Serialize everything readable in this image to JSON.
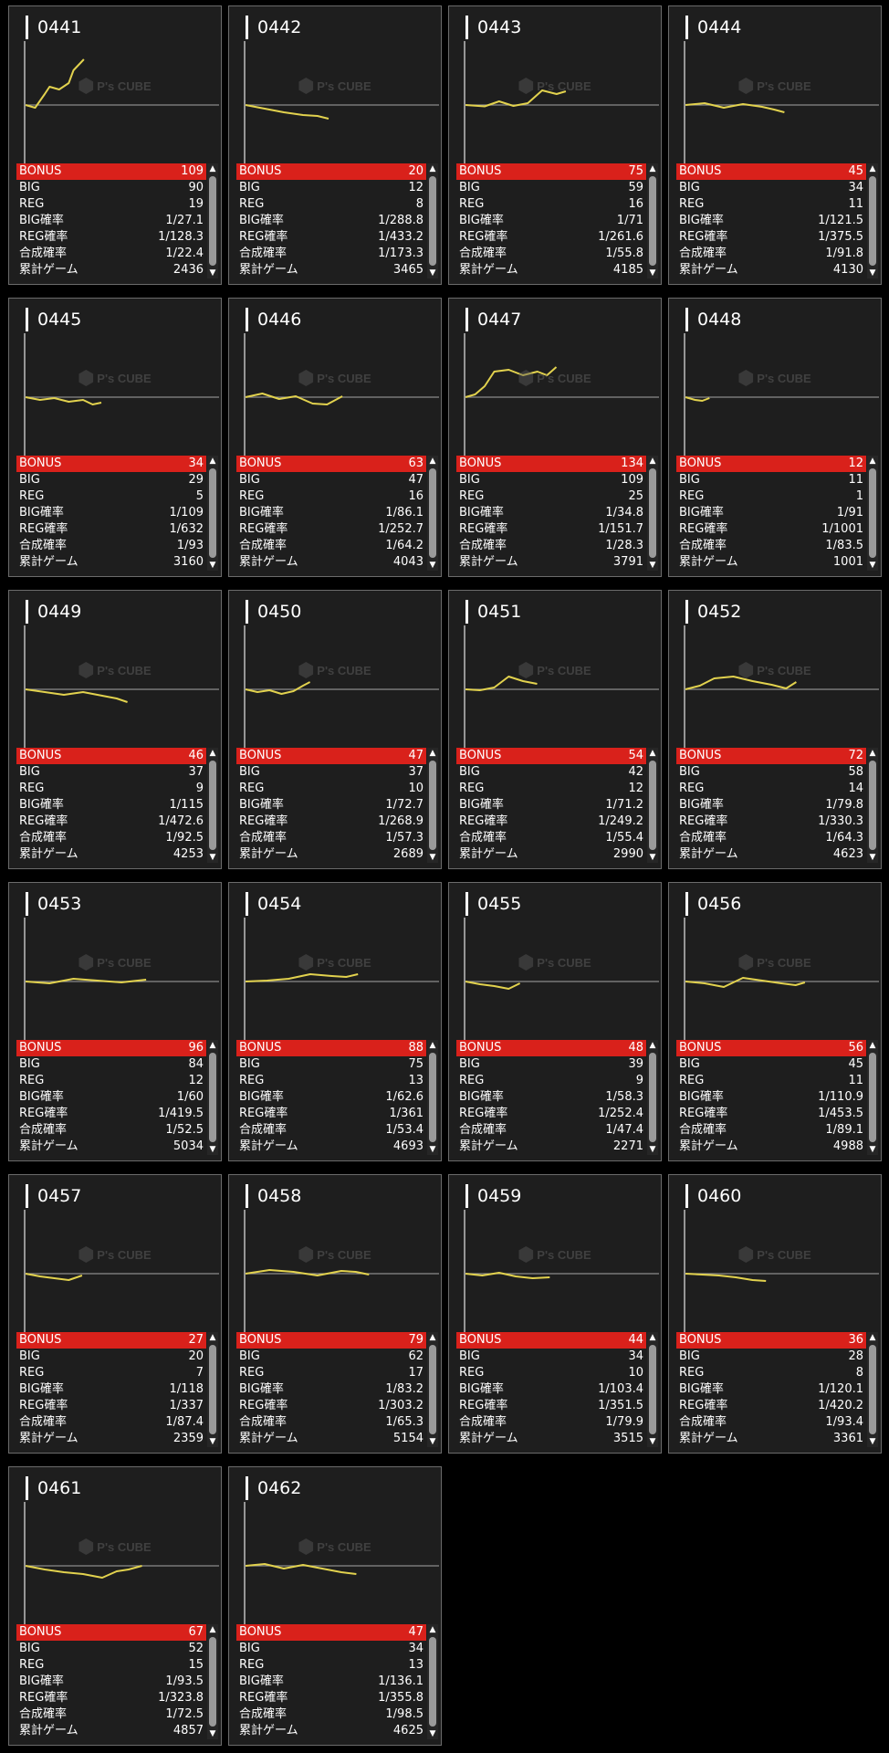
{
  "colors": {
    "accent": "#d9211b",
    "line": "#e2d24e",
    "background": "#000000",
    "card": "#1e1e1e"
  },
  "watermark": "P's CUBE",
  "labels": {
    "bonus": "BONUS",
    "big": "BIG",
    "reg": "REG",
    "big_rate": "BIG確率",
    "reg_rate": "REG確率",
    "combined_rate": "合成確率",
    "total_games": "累計ゲーム"
  },
  "machines": [
    {
      "number": "0441",
      "bonus": "109",
      "big": "90",
      "reg": "19",
      "big_rate": "1/27.1",
      "reg_rate": "1/128.3",
      "combined_rate": "1/22.4",
      "total_games": "2436"
    },
    {
      "number": "0442",
      "bonus": "20",
      "big": "12",
      "reg": "8",
      "big_rate": "1/288.8",
      "reg_rate": "1/433.2",
      "combined_rate": "1/173.3",
      "total_games": "3465"
    },
    {
      "number": "0443",
      "bonus": "75",
      "big": "59",
      "reg": "16",
      "big_rate": "1/71",
      "reg_rate": "1/261.6",
      "combined_rate": "1/55.8",
      "total_games": "4185"
    },
    {
      "number": "0444",
      "bonus": "45",
      "big": "34",
      "reg": "11",
      "big_rate": "1/121.5",
      "reg_rate": "1/375.5",
      "combined_rate": "1/91.8",
      "total_games": "4130"
    },
    {
      "number": "0445",
      "bonus": "34",
      "big": "29",
      "reg": "5",
      "big_rate": "1/109",
      "reg_rate": "1/632",
      "combined_rate": "1/93",
      "total_games": "3160"
    },
    {
      "number": "0446",
      "bonus": "63",
      "big": "47",
      "reg": "16",
      "big_rate": "1/86.1",
      "reg_rate": "1/252.7",
      "combined_rate": "1/64.2",
      "total_games": "4043"
    },
    {
      "number": "0447",
      "bonus": "134",
      "big": "109",
      "reg": "25",
      "big_rate": "1/34.8",
      "reg_rate": "1/151.7",
      "combined_rate": "1/28.3",
      "total_games": "3791"
    },
    {
      "number": "0448",
      "bonus": "12",
      "big": "11",
      "reg": "1",
      "big_rate": "1/91",
      "reg_rate": "1/1001",
      "combined_rate": "1/83.5",
      "total_games": "1001"
    },
    {
      "number": "0449",
      "bonus": "46",
      "big": "37",
      "reg": "9",
      "big_rate": "1/115",
      "reg_rate": "1/472.6",
      "combined_rate": "1/92.5",
      "total_games": "4253"
    },
    {
      "number": "0450",
      "bonus": "47",
      "big": "37",
      "reg": "10",
      "big_rate": "1/72.7",
      "reg_rate": "1/268.9",
      "combined_rate": "1/57.3",
      "total_games": "2689"
    },
    {
      "number": "0451",
      "bonus": "54",
      "big": "42",
      "reg": "12",
      "big_rate": "1/71.2",
      "reg_rate": "1/249.2",
      "combined_rate": "1/55.4",
      "total_games": "2990"
    },
    {
      "number": "0452",
      "bonus": "72",
      "big": "58",
      "reg": "14",
      "big_rate": "1/79.8",
      "reg_rate": "1/330.3",
      "combined_rate": "1/64.3",
      "total_games": "4623"
    },
    {
      "number": "0453",
      "bonus": "96",
      "big": "84",
      "reg": "12",
      "big_rate": "1/60",
      "reg_rate": "1/419.5",
      "combined_rate": "1/52.5",
      "total_games": "5034"
    },
    {
      "number": "0454",
      "bonus": "88",
      "big": "75",
      "reg": "13",
      "big_rate": "1/62.6",
      "reg_rate": "1/361",
      "combined_rate": "1/53.4",
      "total_games": "4693"
    },
    {
      "number": "0455",
      "bonus": "48",
      "big": "39",
      "reg": "9",
      "big_rate": "1/58.3",
      "reg_rate": "1/252.4",
      "combined_rate": "1/47.4",
      "total_games": "2271"
    },
    {
      "number": "0456",
      "bonus": "56",
      "big": "45",
      "reg": "11",
      "big_rate": "1/110.9",
      "reg_rate": "1/453.5",
      "combined_rate": "1/89.1",
      "total_games": "4988"
    },
    {
      "number": "0457",
      "bonus": "27",
      "big": "20",
      "reg": "7",
      "big_rate": "1/118",
      "reg_rate": "1/337",
      "combined_rate": "1/87.4",
      "total_games": "2359"
    },
    {
      "number": "0458",
      "bonus": "79",
      "big": "62",
      "reg": "17",
      "big_rate": "1/83.2",
      "reg_rate": "1/303.2",
      "combined_rate": "1/65.3",
      "total_games": "5154"
    },
    {
      "number": "0459",
      "bonus": "44",
      "big": "34",
      "reg": "10",
      "big_rate": "1/103.4",
      "reg_rate": "1/351.5",
      "combined_rate": "1/79.9",
      "total_games": "3515"
    },
    {
      "number": "0460",
      "bonus": "36",
      "big": "28",
      "reg": "8",
      "big_rate": "1/120.1",
      "reg_rate": "1/420.2",
      "combined_rate": "1/93.4",
      "total_games": "3361"
    },
    {
      "number": "0461",
      "bonus": "67",
      "big": "52",
      "reg": "15",
      "big_rate": "1/93.5",
      "reg_rate": "1/323.8",
      "combined_rate": "1/72.5",
      "total_games": "4857"
    },
    {
      "number": "0462",
      "bonus": "47",
      "big": "34",
      "reg": "13",
      "big_rate": "1/136.1",
      "reg_rate": "1/355.8",
      "combined_rate": "1/98.5",
      "total_games": "4625"
    }
  ],
  "chart_data": [
    {
      "type": "line",
      "machine": "0441",
      "x": [
        0,
        400,
        800,
        1000,
        1400,
        1800,
        2000,
        2436
      ],
      "y": [
        0,
        -300,
        1200,
        2000,
        1700,
        2400,
        3800,
        5000
      ]
    },
    {
      "type": "line",
      "machine": "0442",
      "x": [
        0,
        800,
        1600,
        2400,
        3000,
        3465
      ],
      "y": [
        0,
        -400,
        -800,
        -1100,
        -1200,
        -1500
      ]
    },
    {
      "type": "line",
      "machine": "0443",
      "x": [
        0,
        800,
        1400,
        2000,
        2600,
        3200,
        3800,
        4185
      ],
      "y": [
        0,
        -150,
        400,
        -100,
        200,
        1600,
        1200,
        1500
      ]
    },
    {
      "type": "line",
      "machine": "0444",
      "x": [
        0,
        800,
        1600,
        2400,
        3200,
        3700,
        4130
      ],
      "y": [
        0,
        200,
        -300,
        100,
        -200,
        -500,
        -800
      ]
    },
    {
      "type": "line",
      "machine": "0445",
      "x": [
        0,
        600,
        1200,
        1800,
        2400,
        2800,
        3160
      ],
      "y": [
        0,
        -300,
        -100,
        -500,
        -300,
        -800,
        -600
      ]
    },
    {
      "type": "line",
      "machine": "0446",
      "x": [
        0,
        700,
        1400,
        2100,
        2800,
        3400,
        4043
      ],
      "y": [
        0,
        400,
        -200,
        100,
        -700,
        -800,
        100
      ]
    },
    {
      "type": "line",
      "machine": "0447",
      "x": [
        0,
        400,
        800,
        1200,
        1800,
        2400,
        3000,
        3400,
        3791
      ],
      "y": [
        0,
        300,
        1200,
        2800,
        3000,
        2400,
        2800,
        2400,
        3300
      ]
    },
    {
      "type": "line",
      "machine": "0448",
      "x": [
        0,
        400,
        700,
        1001
      ],
      "y": [
        0,
        -300,
        -400,
        -100
      ]
    },
    {
      "type": "line",
      "machine": "0449",
      "x": [
        0,
        800,
        1600,
        2400,
        3200,
        3800,
        4253
      ],
      "y": [
        0,
        -300,
        -600,
        -300,
        -700,
        -1000,
        -1400
      ]
    },
    {
      "type": "line",
      "machine": "0450",
      "x": [
        0,
        500,
        1000,
        1500,
        2000,
        2400,
        2689
      ],
      "y": [
        0,
        -300,
        -100,
        -500,
        -200,
        400,
        800
      ]
    },
    {
      "type": "line",
      "machine": "0451",
      "x": [
        0,
        600,
        1200,
        1800,
        2400,
        2990
      ],
      "y": [
        0,
        -100,
        200,
        1400,
        900,
        600
      ]
    },
    {
      "type": "line",
      "machine": "0452",
      "x": [
        0,
        600,
        1200,
        2000,
        2800,
        3600,
        4200,
        4623
      ],
      "y": [
        0,
        400,
        1200,
        1400,
        900,
        500,
        100,
        800
      ]
    },
    {
      "type": "line",
      "machine": "0453",
      "x": [
        0,
        1000,
        2000,
        3000,
        4000,
        5034
      ],
      "y": [
        0,
        -200,
        300,
        100,
        -100,
        200
      ]
    },
    {
      "type": "line",
      "machine": "0454",
      "x": [
        0,
        900,
        1800,
        2700,
        3600,
        4200,
        4693
      ],
      "y": [
        0,
        100,
        300,
        800,
        600,
        500,
        800
      ]
    },
    {
      "type": "line",
      "machine": "0455",
      "x": [
        0,
        600,
        1200,
        1800,
        2271
      ],
      "y": [
        0,
        -300,
        -500,
        -800,
        -200
      ]
    },
    {
      "type": "line",
      "machine": "0456",
      "x": [
        0,
        800,
        1600,
        2400,
        3200,
        4000,
        4600,
        4988
      ],
      "y": [
        0,
        -200,
        -600,
        400,
        100,
        -200,
        -400,
        -100
      ]
    },
    {
      "type": "line",
      "machine": "0457",
      "x": [
        0,
        600,
        1200,
        1800,
        2359
      ],
      "y": [
        0,
        -300,
        -500,
        -700,
        -200
      ]
    },
    {
      "type": "line",
      "machine": "0458",
      "x": [
        0,
        1000,
        2000,
        3000,
        4000,
        4600,
        5154
      ],
      "y": [
        0,
        400,
        200,
        -200,
        300,
        200,
        -100
      ]
    },
    {
      "type": "line",
      "machine": "0459",
      "x": [
        0,
        700,
        1400,
        2100,
        2800,
        3515
      ],
      "y": [
        0,
        -200,
        100,
        -300,
        -500,
        -400
      ]
    },
    {
      "type": "line",
      "machine": "0460",
      "x": [
        0,
        700,
        1400,
        2100,
        2800,
        3361
      ],
      "y": [
        0,
        -100,
        -200,
        -400,
        -700,
        -800
      ]
    },
    {
      "type": "line",
      "machine": "0461",
      "x": [
        0,
        800,
        1600,
        2400,
        3200,
        3800,
        4300,
        4857
      ],
      "y": [
        0,
        -400,
        -700,
        -900,
        -1300,
        -600,
        -400,
        0
      ]
    },
    {
      "type": "line",
      "machine": "0462",
      "x": [
        0,
        800,
        1600,
        2400,
        3200,
        4000,
        4625
      ],
      "y": [
        0,
        200,
        -300,
        100,
        -300,
        -700,
        -900
      ]
    }
  ]
}
